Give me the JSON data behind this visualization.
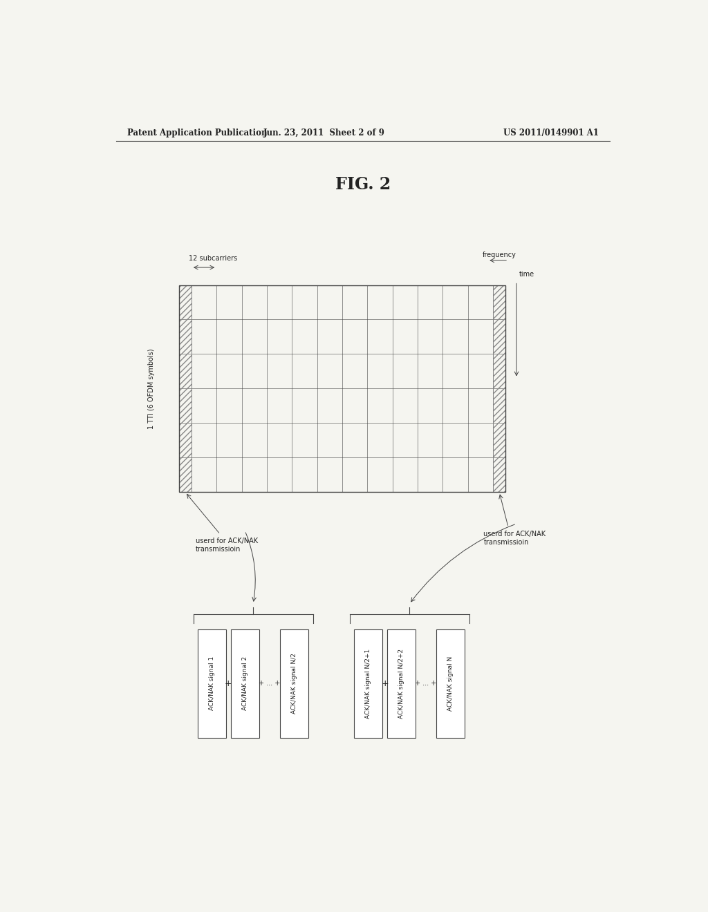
{
  "title": "FIG. 2",
  "header_left": "Patent Application Publication",
  "header_center": "Jun. 23, 2011  Sheet 2 of 9",
  "header_right": "US 2011/0149901 A1",
  "grid_rows": 6,
  "grid_cols": 14,
  "label_12subcarriers": "12 subcarriers",
  "label_frequency": "frequency",
  "label_time": "time",
  "label_tti": "1 TTI (6 OFDM symbols)",
  "label_userd_left": "userd for ACK/NAK\ntransmissioin",
  "label_userd_right": "userd for ACK/NAK\ntransmissioin",
  "boxes_group1": [
    "ACK/NAK signal 1",
    "ACK/NAK signal 2",
    "ACK/NAK signal N/2"
  ],
  "boxes_group2": [
    "ACK/NAK signal N/2+1",
    "ACK/NAK signal N/2+2",
    "ACK/NAK signal N"
  ],
  "bg_color": "#f5f5f0",
  "line_color": "#444444",
  "text_color": "#222222"
}
